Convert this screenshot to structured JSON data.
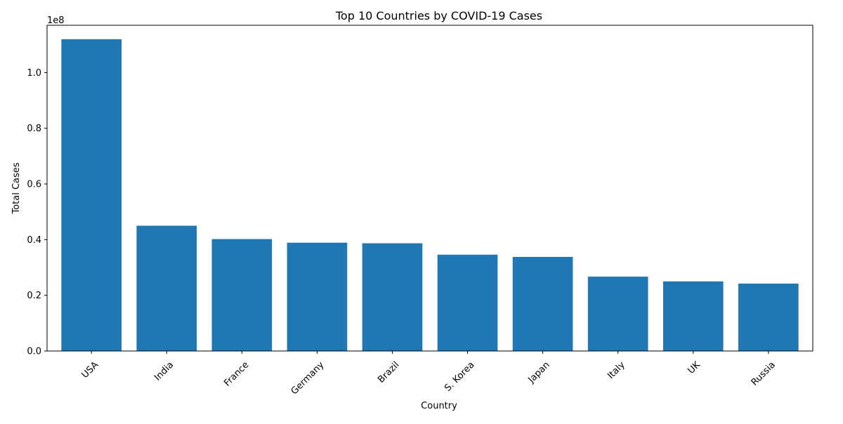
{
  "chart_data": {
    "type": "bar",
    "title": "Top 10 Countries by COVID-19 Cases",
    "xlabel": "Country",
    "ylabel": "Total Cases",
    "y_offset_label": "1e8",
    "categories": [
      "USA",
      "India",
      "France",
      "Germany",
      "Brazil",
      "S. Korea",
      "Japan",
      "Italy",
      "UK",
      "Russia"
    ],
    "values": [
      112000000,
      45000000,
      40200000,
      38900000,
      38700000,
      34600000,
      33800000,
      26700000,
      25000000,
      24200000
    ],
    "ylim": [
      0,
      117000000
    ],
    "yticks": [
      0,
      20000000,
      40000000,
      60000000,
      80000000,
      100000000
    ],
    "ytick_labels": [
      "0.0",
      "0.2",
      "0.4",
      "0.6",
      "0.8",
      "1.0"
    ],
    "bar_color": "#1f77b4",
    "grid": false,
    "legend": false
  }
}
